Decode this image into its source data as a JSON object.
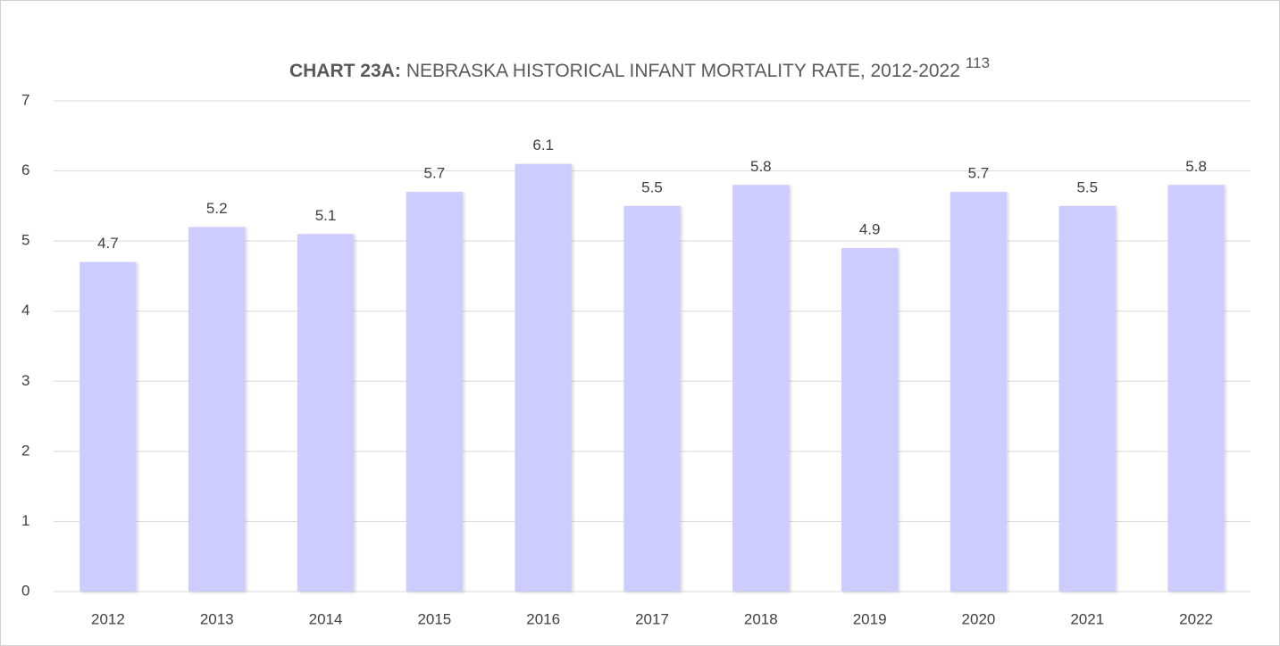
{
  "chart_data": {
    "type": "bar",
    "title_label": "CHART 23A:",
    "title": "NEBRASKA HISTORICAL INFANT MORTALITY RATE, 2012-2022",
    "title_footnote": "113",
    "categories": [
      "2012",
      "2013",
      "2014",
      "2015",
      "2016",
      "2017",
      "2018",
      "2019",
      "2020",
      "2021",
      "2022"
    ],
    "values": [
      4.7,
      5.2,
      5.1,
      5.7,
      6.1,
      5.5,
      5.8,
      4.9,
      5.7,
      5.5,
      5.8
    ],
    "color": "#ccccff",
    "ylim": [
      0,
      7
    ],
    "yticks": [
      0,
      1,
      2,
      3,
      4,
      5,
      6,
      7
    ],
    "grid": true
  }
}
